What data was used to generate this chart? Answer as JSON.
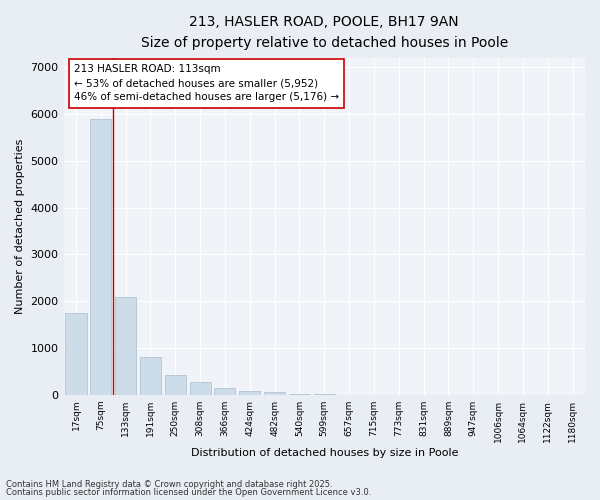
{
  "title_line1": "213, HASLER ROAD, POOLE, BH17 9AN",
  "title_line2": "Size of property relative to detached houses in Poole",
  "xlabel": "Distribution of detached houses by size in Poole",
  "ylabel": "Number of detached properties",
  "categories": [
    "17sqm",
    "75sqm",
    "133sqm",
    "191sqm",
    "250sqm",
    "308sqm",
    "366sqm",
    "424sqm",
    "482sqm",
    "540sqm",
    "599sqm",
    "657sqm",
    "715sqm",
    "773sqm",
    "831sqm",
    "889sqm",
    "947sqm",
    "1006sqm",
    "1064sqm",
    "1122sqm",
    "1180sqm"
  ],
  "values": [
    1750,
    5900,
    2100,
    820,
    430,
    280,
    150,
    90,
    60,
    30,
    10,
    5,
    3,
    1,
    0,
    0,
    0,
    0,
    0,
    0,
    0
  ],
  "bar_color": "#ccdce8",
  "bar_edge_color": "#aabccc",
  "vline_color": "#cc0000",
  "annotation_text": "213 HASLER ROAD: 113sqm\n← 53% of detached houses are smaller (5,952)\n46% of semi-detached houses are larger (5,176) →",
  "annotation_box_color": "#ffffff",
  "annotation_box_edge_color": "#cc0000",
  "ylim": [
    0,
    7200
  ],
  "yticks": [
    0,
    1000,
    2000,
    3000,
    4000,
    5000,
    6000,
    7000
  ],
  "footnote_line1": "Contains HM Land Registry data © Crown copyright and database right 2025.",
  "footnote_line2": "Contains public sector information licensed under the Open Government Licence v3.0.",
  "bg_color": "#e8eef4",
  "plot_bg_color": "#f0f4f8",
  "grid_color": "#ffffff"
}
